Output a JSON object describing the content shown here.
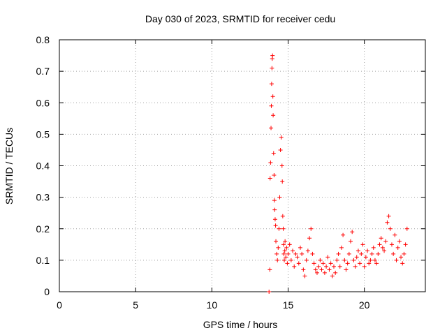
{
  "chart_data": {
    "type": "scatter",
    "title": "Day 030 of 2023, SRMTID for receiver cedu",
    "xlabel": "GPS time / hours",
    "ylabel": "SRMTID / TECUs",
    "xlim": [
      0,
      24
    ],
    "ylim": [
      0,
      0.8
    ],
    "xticks": [
      0,
      5,
      10,
      15,
      20
    ],
    "xtick_labels": [
      "0",
      "5",
      "10",
      "15",
      "20"
    ],
    "yticks": [
      0,
      0.1,
      0.2,
      0.3,
      0.4,
      0.5,
      0.6,
      0.7,
      0.8
    ],
    "ytick_labels": [
      "0",
      "0.1",
      "0.2",
      "0.3",
      "0.4",
      "0.5",
      "0.6",
      "0.7",
      "0.8"
    ],
    "grid": true,
    "legend": "none",
    "marker": "+",
    "color": "#ff0000",
    "series": [
      {
        "name": "SRMTID",
        "x": [
          13.75,
          13.8,
          13.82,
          13.85,
          13.88,
          13.9,
          13.92,
          13.94,
          13.96,
          13.98,
          14.0,
          14.02,
          14.05,
          14.08,
          14.1,
          14.12,
          14.15,
          14.18,
          14.2,
          14.25,
          14.3,
          14.35,
          14.4,
          14.45,
          14.5,
          14.55,
          14.6,
          14.62,
          14.65,
          14.68,
          14.7,
          14.72,
          14.75,
          14.78,
          14.8,
          14.85,
          14.9,
          14.95,
          15.0,
          15.1,
          15.2,
          15.3,
          15.4,
          15.5,
          15.6,
          15.7,
          15.8,
          15.9,
          16.0,
          16.1,
          16.2,
          16.3,
          16.4,
          16.5,
          16.6,
          16.7,
          16.8,
          16.9,
          17.0,
          17.1,
          17.2,
          17.3,
          17.4,
          17.5,
          17.6,
          17.7,
          17.8,
          17.9,
          18.0,
          18.1,
          18.2,
          18.3,
          18.4,
          18.5,
          18.6,
          18.7,
          18.8,
          18.9,
          19.0,
          19.1,
          19.2,
          19.3,
          19.4,
          19.5,
          19.6,
          19.7,
          19.8,
          19.9,
          20.0,
          20.1,
          20.2,
          20.3,
          20.4,
          20.5,
          20.6,
          20.7,
          20.8,
          20.9,
          21.0,
          21.1,
          21.2,
          21.3,
          21.4,
          21.5,
          21.6,
          21.7,
          21.8,
          21.9,
          22.0,
          22.1,
          22.2,
          22.3,
          22.4,
          22.5,
          22.6,
          22.7,
          22.8
        ],
        "y": [
          0.0,
          0.07,
          0.36,
          0.41,
          0.52,
          0.59,
          0.66,
          0.71,
          0.74,
          0.75,
          0.62,
          0.56,
          0.44,
          0.37,
          0.29,
          0.26,
          0.23,
          0.21,
          0.16,
          0.12,
          0.1,
          0.14,
          0.2,
          0.3,
          0.45,
          0.49,
          0.4,
          0.35,
          0.24,
          0.2,
          0.15,
          0.12,
          0.1,
          0.13,
          0.16,
          0.11,
          0.14,
          0.09,
          0.12,
          0.15,
          0.1,
          0.13,
          0.08,
          0.12,
          0.11,
          0.09,
          0.14,
          0.12,
          0.07,
          0.05,
          0.1,
          0.13,
          0.17,
          0.2,
          0.12,
          0.09,
          0.07,
          0.06,
          0.08,
          0.1,
          0.07,
          0.09,
          0.06,
          0.08,
          0.11,
          0.07,
          0.09,
          0.05,
          0.08,
          0.06,
          0.1,
          0.12,
          0.08,
          0.14,
          0.18,
          0.1,
          0.07,
          0.09,
          0.12,
          0.16,
          0.19,
          0.1,
          0.08,
          0.11,
          0.13,
          0.09,
          0.12,
          0.15,
          0.08,
          0.11,
          0.13,
          0.09,
          0.1,
          0.12,
          0.14,
          0.1,
          0.09,
          0.12,
          0.15,
          0.17,
          0.14,
          0.13,
          0.16,
          0.22,
          0.24,
          0.2,
          0.15,
          0.12,
          0.18,
          0.1,
          0.14,
          0.16,
          0.11,
          0.09,
          0.12,
          0.15,
          0.2
        ]
      }
    ]
  }
}
